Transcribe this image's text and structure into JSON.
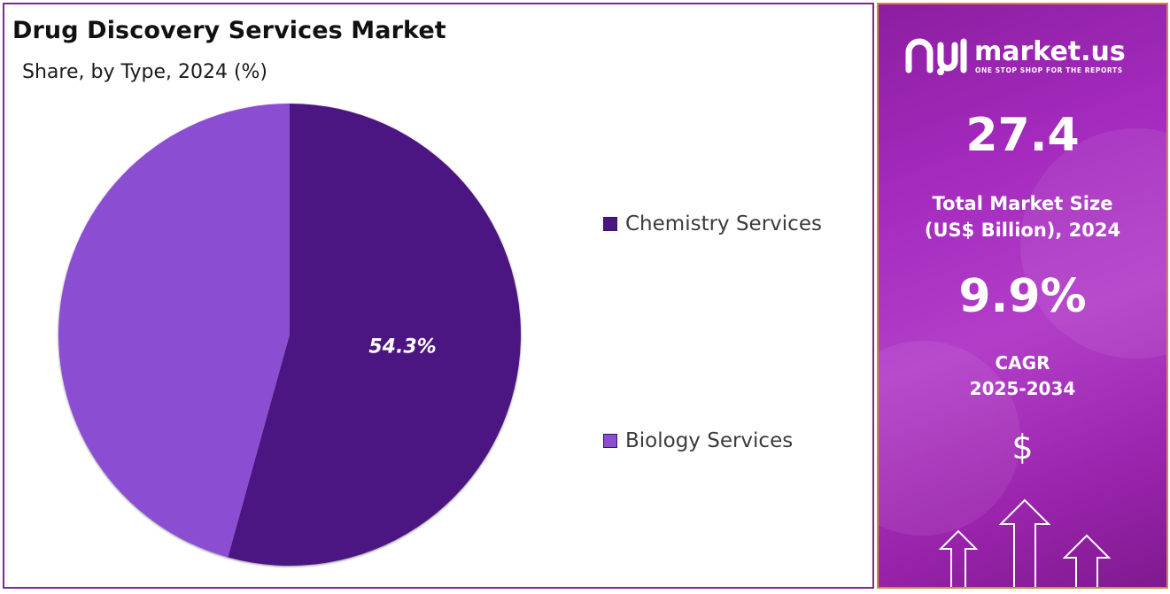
{
  "chart_data": {
    "type": "pie",
    "title": "Drug Discovery Services Market",
    "subtitle": "Share, by Type, 2024 (%)",
    "slices": [
      {
        "label": "Chemistry Services",
        "value": 54.3,
        "color": "#4b1681",
        "data_label": "54.3%"
      },
      {
        "label": "Biology Services",
        "value": 45.7,
        "color": "#8b4ed1",
        "data_label": ""
      }
    ],
    "legend_position": "right",
    "start_angle_deg": 0,
    "direction": "clockwise"
  },
  "side_panel": {
    "brand": "market.us",
    "tagline": "ONE STOP SHOP FOR THE REPORTS",
    "market_size_value": "27.4",
    "market_size_label_line1": "Total Market Size",
    "market_size_label_line2": "(US$ Billion), 2024",
    "cagr_value": "9.9%",
    "cagr_label_line1": "CAGR",
    "cagr_label_line2": "2025-2034",
    "currency_symbol": "$",
    "logo_icon": "market-us-logo-icon",
    "arrows_icon": "growth-arrows-icon"
  }
}
